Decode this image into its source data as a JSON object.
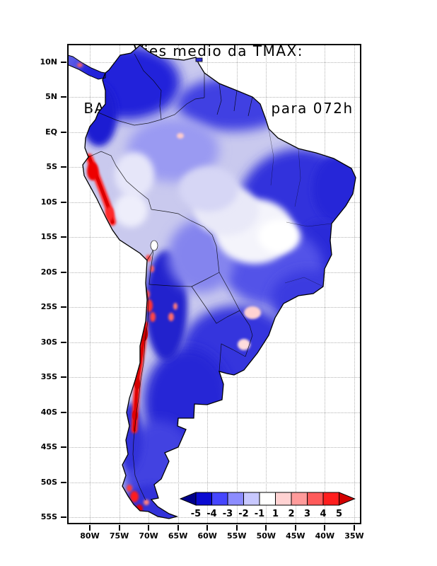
{
  "title": {
    "line1": "Vies medio da TMAX:",
    "line2": "BAM – SAMet 07/2025  para 072h"
  },
  "axes": {
    "lat_labels": [
      "10N",
      "5N",
      "EQ",
      "5S",
      "10S",
      "15S",
      "20S",
      "25S",
      "30S",
      "35S",
      "40S",
      "45S",
      "50S",
      "55S"
    ],
    "lon_labels": [
      "80W",
      "75W",
      "70W",
      "65W",
      "60W",
      "55W",
      "50W",
      "45W",
      "40W",
      "35W"
    ]
  },
  "colorbar": {
    "labels": [
      "-5",
      "-4",
      "-3",
      "-2",
      "-1",
      "1",
      "2",
      "3",
      "4",
      "5"
    ],
    "colors": [
      "#00008b",
      "#0a0ad2",
      "#4646ff",
      "#8c8cff",
      "#c8c8ff",
      "#ffffff",
      "#ffd2d2",
      "#ff9b9b",
      "#ff5a5a",
      "#ff1e1e",
      "#d20000"
    ]
  },
  "chart_data": {
    "type": "heatmap",
    "title": "Vies medio da TMAX: BAM – SAMet 07/2025 para 072h",
    "region": "South America",
    "lat_axis_ticks": [
      "10N",
      "5N",
      "EQ",
      "5S",
      "10S",
      "15S",
      "20S",
      "25S",
      "30S",
      "35S",
      "40S",
      "45S",
      "50S",
      "55S"
    ],
    "lon_axis_ticks": [
      "80W",
      "75W",
      "70W",
      "65W",
      "60W",
      "55W",
      "50W",
      "45W",
      "40W",
      "35W"
    ],
    "scale_levels": [
      -5,
      -4,
      -3,
      -2,
      -1,
      1,
      2,
      3,
      4,
      5
    ],
    "legend_position": "bottom-right inside plot",
    "grid": "dotted",
    "notable_features": [
      "Predominant negative bias (blue shading) over most of the continent",
      "Strong negative bias over eastern Amazonia, northeast and southeast Brazil, northern Andes and central Argentina/Patagonia",
      "Near-zero bias (white) over parts of central Brazil and western Amazonia",
      "Strong positive bias (red) along the Peruvian coast around 5S-12S",
      "Strong positive bias (red) along the Chilean Andes from about 25S to 38S",
      "Scattered positive bias spots over the Altiplano, northwest Argentina and Tierra del Fuego"
    ]
  }
}
